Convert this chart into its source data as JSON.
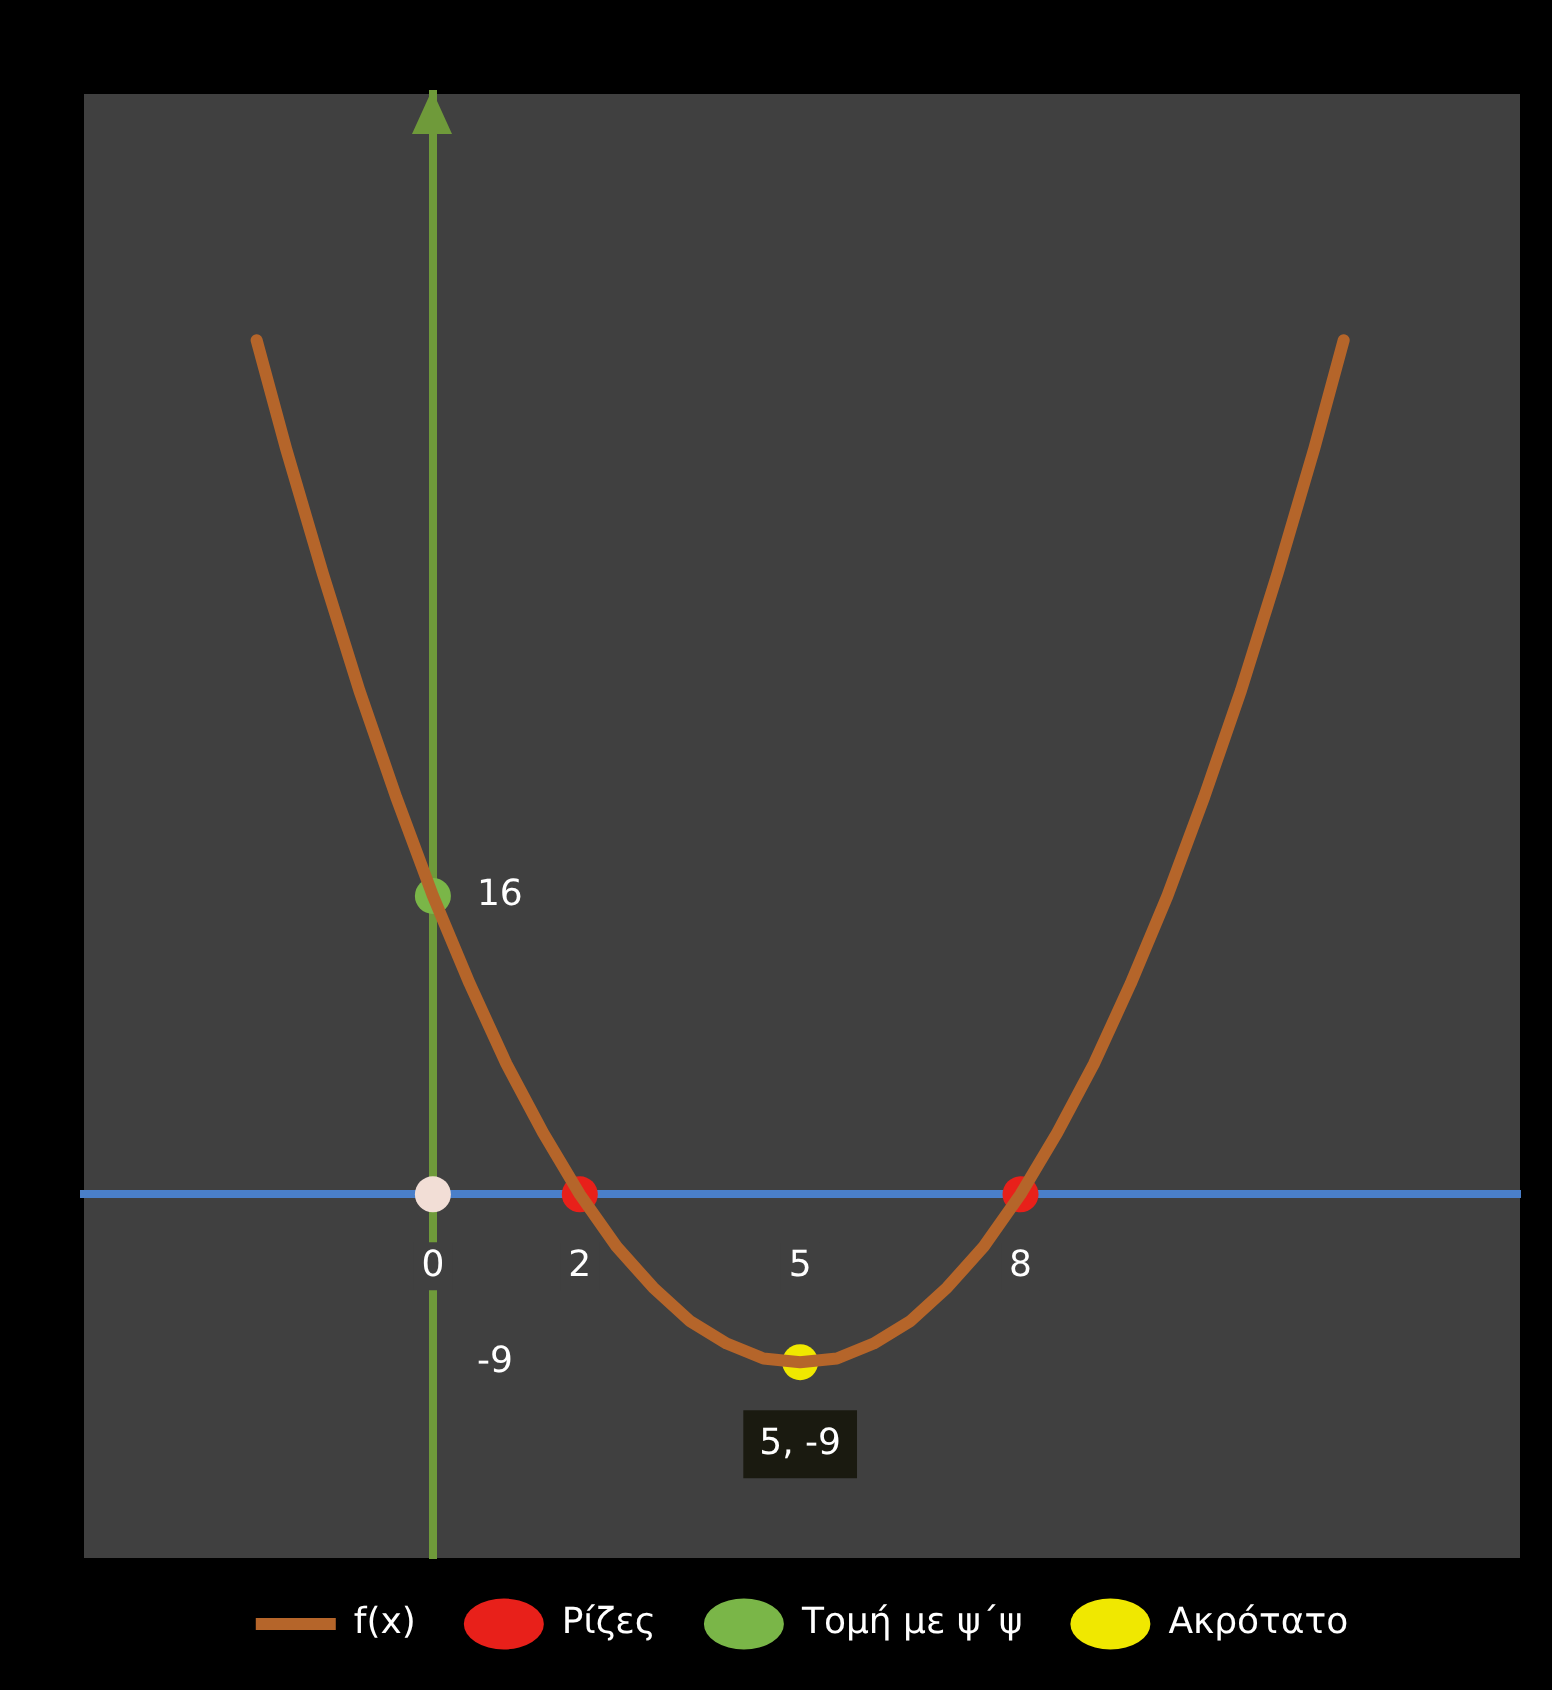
{
  "chart_data": {
    "type": "line",
    "xlim": [
      -4.75,
      14.8
    ],
    "ylim": [
      -19.5,
      59
    ],
    "xticks": [
      0,
      2,
      5,
      8
    ],
    "yticks": [
      -9,
      16
    ],
    "legend": "bottom",
    "series": [
      {
        "name": "f(x)",
        "color": "#b5652a",
        "marker": "none",
        "x": [
          -2.4,
          -2,
          -1.5,
          -1,
          -0.5,
          0,
          0.5,
          1,
          1.5,
          2,
          2.5,
          3,
          3.5,
          4,
          4.5,
          5,
          5.5,
          6,
          6.5,
          7,
          7.5,
          8,
          8.5,
          9,
          9.5,
          10,
          10.5,
          11,
          11.5,
          12,
          12.4
        ],
        "values": [
          45.8,
          40,
          33.3,
          27,
          21.3,
          16,
          11.3,
          7,
          3.3,
          0,
          -2.8,
          -5,
          -6.8,
          -8,
          -8.8,
          -9,
          -8.8,
          -8,
          -6.8,
          -5,
          -2.8,
          0,
          3.3,
          7,
          11.3,
          16,
          21.3,
          27,
          33.3,
          40,
          45.8
        ]
      },
      {
        "name": "Ρίζες",
        "type": "scatter",
        "color": "#e8201a",
        "marker": "circle",
        "x": [
          2,
          8
        ],
        "values": [
          0,
          0
        ]
      },
      {
        "name": "Τομή με ψ΄ψ",
        "type": "scatter",
        "color": "#7ab648",
        "marker": "circle",
        "x": [
          0
        ],
        "values": [
          16
        ]
      },
      {
        "name": "Ακρότατο",
        "type": "scatter",
        "color": "#f0e800",
        "marker": "circle",
        "x": [
          5
        ],
        "values": [
          -9
        ]
      },
      {
        "type": "scatter",
        "color": "#f2ded6",
        "marker": "circle",
        "x": [
          0
        ],
        "values": [
          0
        ]
      }
    ],
    "annotations": [
      {
        "text": "5, -9",
        "x": 5,
        "y": -9
      }
    ]
  }
}
